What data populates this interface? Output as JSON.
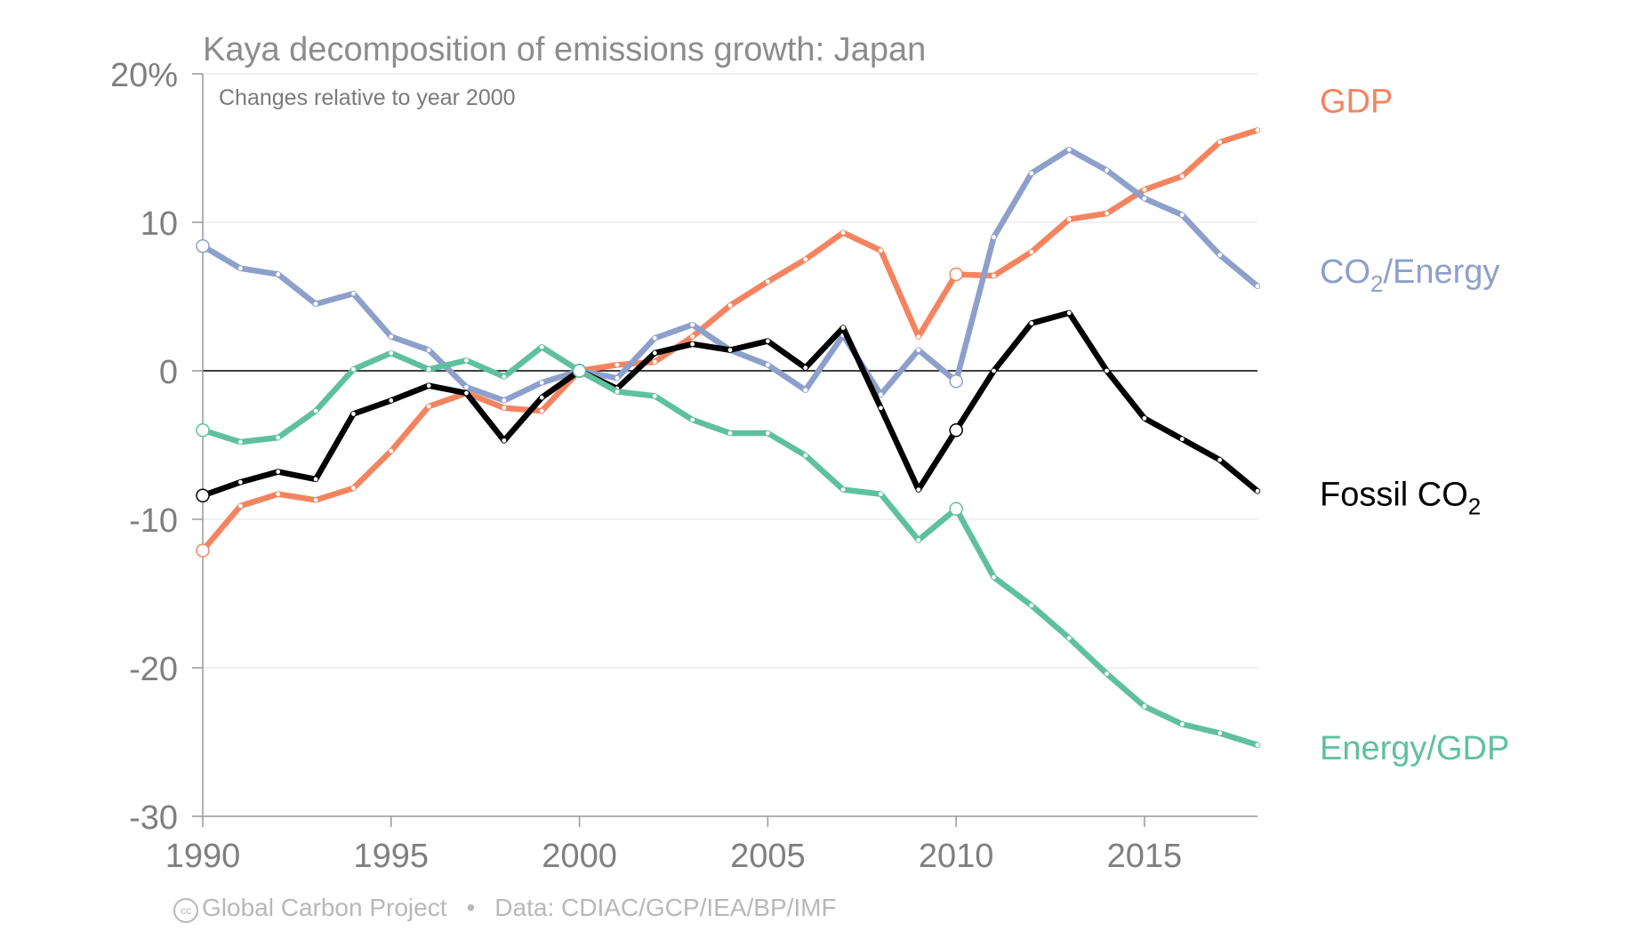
{
  "chart_data": {
    "type": "line",
    "title": "Kaya decomposition of emissions growth: Japan",
    "subtitle": "Changes relative to year 2000",
    "xlabel": "",
    "ylabel": "",
    "xlim": [
      1990,
      2018
    ],
    "ylim": [
      -30,
      20
    ],
    "x_ticks": [
      1990,
      1995,
      2000,
      2005,
      2010,
      2015
    ],
    "x_tick_labels": [
      "1990",
      "1995",
      "2000",
      "2005",
      "2010",
      "2015"
    ],
    "y_ticks": [
      20,
      10,
      0,
      -10,
      -20,
      -30
    ],
    "y_tick_labels": [
      "20%",
      "10",
      "0",
      "-10",
      "-20",
      "-30"
    ],
    "grid": true,
    "legend": "right, inline labels at line ends",
    "x": [
      1990,
      1991,
      1992,
      1993,
      1994,
      1995,
      1996,
      1997,
      1998,
      1999,
      2000,
      2001,
      2002,
      2003,
      2004,
      2005,
      2006,
      2007,
      2008,
      2009,
      2010,
      2011,
      2012,
      2013,
      2014,
      2015,
      2016,
      2017,
      2018
    ],
    "highlight_x": [
      1990,
      2000,
      2010
    ],
    "series": [
      {
        "name": "GDP",
        "label_main": "GDP",
        "label_sub": "",
        "label_after": "",
        "color": "#f4845f",
        "values": [
          -12.1,
          -9.1,
          -8.3,
          -8.7,
          -7.9,
          -5.4,
          -2.4,
          -1.5,
          -2.5,
          -2.7,
          0,
          0.4,
          0.6,
          2.3,
          4.4,
          6.0,
          7.5,
          9.3,
          8.1,
          2.3,
          6.5,
          6.4,
          8.0,
          10.2,
          10.6,
          12.2,
          13.1,
          15.4,
          16.2
        ]
      },
      {
        "name": "CO2/Energy",
        "label_main": "CO",
        "label_sub": "2",
        "label_after": "/Energy",
        "color": "#8da0cb",
        "values": [
          8.4,
          6.9,
          6.5,
          4.5,
          5.2,
          2.3,
          1.4,
          -1.1,
          -2.0,
          -0.8,
          0,
          -0.5,
          2.2,
          3.1,
          1.4,
          0.4,
          -1.3,
          2.4,
          -1.6,
          1.4,
          -0.7,
          9.0,
          13.3,
          14.9,
          13.5,
          11.6,
          10.5,
          7.8,
          5.7
        ]
      },
      {
        "name": "Fossil CO2",
        "label_main": "Fossil CO",
        "label_sub": "2",
        "label_after": "",
        "color": "#000000",
        "values": [
          -8.4,
          -7.5,
          -6.8,
          -7.3,
          -2.9,
          -2.0,
          -1.0,
          -1.5,
          -4.7,
          -1.8,
          0,
          -1.2,
          1.2,
          1.8,
          1.4,
          2.0,
          0.2,
          2.9,
          -2.5,
          -8.0,
          -4.0,
          0,
          3.2,
          3.9,
          0,
          -3.2,
          -4.6,
          -6.0,
          -8.1
        ]
      },
      {
        "name": "Energy/GDP",
        "label_main": "Energy/GDP",
        "label_sub": "",
        "label_after": "",
        "color": "#5fc09f",
        "values": [
          -4.0,
          -4.8,
          -4.5,
          -2.7,
          0.1,
          1.2,
          0.1,
          0.7,
          -0.4,
          1.6,
          0,
          -1.4,
          -1.7,
          -3.3,
          -4.2,
          -4.2,
          -5.7,
          -8.0,
          -8.3,
          -11.4,
          -9.3,
          -13.9,
          -15.8,
          -18.0,
          -20.4,
          -22.6,
          -23.8,
          -24.4,
          -25.2
        ]
      }
    ]
  },
  "footer": {
    "cc_icon": "cc-icon",
    "project": "Global Carbon Project",
    "separator": "•",
    "source": "Data: CDIAC/GCP/IEA/BP/IMF"
  }
}
